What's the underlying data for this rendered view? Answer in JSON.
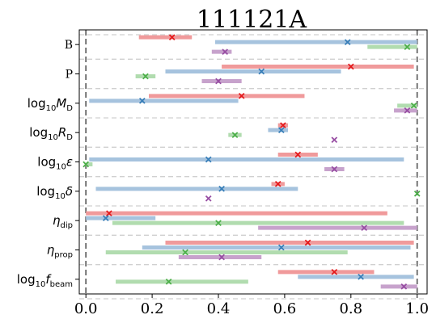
{
  "chart_data": {
    "type": "interval",
    "title": "111121A",
    "xlim": [
      -0.02,
      1.03
    ],
    "xticks": [
      0.0,
      0.2,
      0.4,
      0.6,
      0.8,
      1.0
    ],
    "xtick_labels": [
      "0.0",
      "0.2",
      "0.4",
      "0.6",
      "0.8",
      "1.0"
    ],
    "vlines": [
      0.0,
      1.0
    ],
    "grid": "horizontal dashed separators between rows",
    "colors": {
      "red": "#e41a1c",
      "blue": "#377eb8",
      "green": "#4daf4a",
      "purple": "#984ea3",
      "red_bar": "#f09a9b",
      "blue_bar": "#a6c3de",
      "green_bar": "#b1dcaf",
      "purple_bar": "#c7a2cc"
    },
    "rows": [
      {
        "label": {
          "base": "B",
          "sub": "",
          "style": "serif"
        },
        "items": [
          {
            "series": "red",
            "lo": 0.16,
            "hi": 0.32,
            "x": 0.26
          },
          {
            "series": "blue",
            "lo": 0.39,
            "hi": 1.0,
            "x": 0.79
          },
          {
            "series": "green",
            "lo": 0.85,
            "hi": 1.0,
            "x": 0.97
          },
          {
            "series": "purple",
            "lo": 0.38,
            "hi": 0.44,
            "x": 0.42
          }
        ]
      },
      {
        "label": {
          "base": "P",
          "sub": "",
          "style": "serif"
        },
        "items": [
          {
            "series": "red",
            "lo": 0.41,
            "hi": 0.99,
            "x": 0.8
          },
          {
            "series": "blue",
            "lo": 0.24,
            "hi": 0.77,
            "x": 0.53
          },
          {
            "series": "green",
            "lo": 0.15,
            "hi": 0.21,
            "x": 0.18
          },
          {
            "series": "purple",
            "lo": 0.35,
            "hi": 0.47,
            "x": 0.4
          }
        ]
      },
      {
        "label": {
          "base": "log",
          "basesub": "10",
          "var": "M",
          "sub": "D",
          "style": "math"
        },
        "items": [
          {
            "series": "red",
            "lo": 0.19,
            "hi": 0.66,
            "x": 0.47
          },
          {
            "series": "blue",
            "lo": 0.01,
            "hi": 0.46,
            "x": 0.17
          },
          {
            "series": "green",
            "lo": 0.94,
            "hi": 1.0,
            "x": 0.99
          },
          {
            "series": "purple",
            "lo": 0.93,
            "hi": 1.0,
            "x": 0.97
          }
        ]
      },
      {
        "label": {
          "base": "log",
          "basesub": "10",
          "var": "R",
          "sub": "D",
          "style": "math"
        },
        "items": [
          {
            "series": "red",
            "lo": 0.58,
            "hi": 0.61,
            "x": 0.595
          },
          {
            "series": "blue",
            "lo": 0.55,
            "hi": 0.61,
            "x": 0.59
          },
          {
            "series": "green",
            "lo": 0.43,
            "hi": 0.47,
            "x": 0.45
          },
          {
            "series": "purple",
            "lo": 0.75,
            "hi": 0.75,
            "x": 0.75
          }
        ]
      },
      {
        "label": {
          "base": "log",
          "basesub": "10",
          "var": "ε",
          "sub": "",
          "style": "math"
        },
        "items": [
          {
            "series": "red",
            "lo": 0.58,
            "hi": 0.7,
            "x": 0.64
          },
          {
            "series": "blue",
            "lo": 0.01,
            "hi": 0.96,
            "x": 0.37
          },
          {
            "series": "green",
            "lo": 0.0,
            "hi": 0.02,
            "x": 0.0
          },
          {
            "series": "purple",
            "lo": 0.72,
            "hi": 0.78,
            "x": 0.75
          }
        ]
      },
      {
        "label": {
          "base": "log",
          "basesub": "10",
          "var": "δ",
          "sub": "",
          "style": "math"
        },
        "items": [
          {
            "series": "red",
            "lo": 0.56,
            "hi": 0.6,
            "x": 0.58
          },
          {
            "series": "blue",
            "lo": 0.03,
            "hi": 0.64,
            "x": 0.41
          },
          {
            "series": "green",
            "lo": 1.0,
            "hi": 1.0,
            "x": 1.0
          },
          {
            "series": "purple",
            "lo": 0.37,
            "hi": 0.37,
            "x": 0.37
          }
        ]
      },
      {
        "label": {
          "base": "",
          "basesub": "",
          "var": "η",
          "sub": "dip",
          "style": "math"
        },
        "items": [
          {
            "series": "red",
            "lo": 0.0,
            "hi": 0.91,
            "x": 0.07
          },
          {
            "series": "blue",
            "lo": 0.0,
            "hi": 0.21,
            "x": 0.06
          },
          {
            "series": "green",
            "lo": 0.08,
            "hi": 0.96,
            "x": 0.4
          },
          {
            "series": "purple",
            "lo": 0.52,
            "hi": 1.0,
            "x": 0.84
          }
        ]
      },
      {
        "label": {
          "base": "",
          "basesub": "",
          "var": "η",
          "sub": "prop",
          "style": "math"
        },
        "items": [
          {
            "series": "red",
            "lo": 0.24,
            "hi": 0.99,
            "x": 0.67
          },
          {
            "series": "blue",
            "lo": 0.17,
            "hi": 0.98,
            "x": 0.59
          },
          {
            "series": "green",
            "lo": 0.06,
            "hi": 0.79,
            "x": 0.3
          },
          {
            "series": "purple",
            "lo": 0.28,
            "hi": 0.53,
            "x": 0.41
          }
        ]
      },
      {
        "label": {
          "base": "log",
          "basesub": "10",
          "var": "f",
          "sub": "beam",
          "style": "math"
        },
        "items": [
          {
            "series": "red",
            "lo": 0.58,
            "hi": 0.87,
            "x": 0.75
          },
          {
            "series": "blue",
            "lo": 0.64,
            "hi": 0.99,
            "x": 0.83
          },
          {
            "series": "green",
            "lo": 0.09,
            "hi": 0.49,
            "x": 0.25
          },
          {
            "series": "purple",
            "lo": 0.89,
            "hi": 1.0,
            "x": 0.96
          }
        ]
      }
    ]
  }
}
